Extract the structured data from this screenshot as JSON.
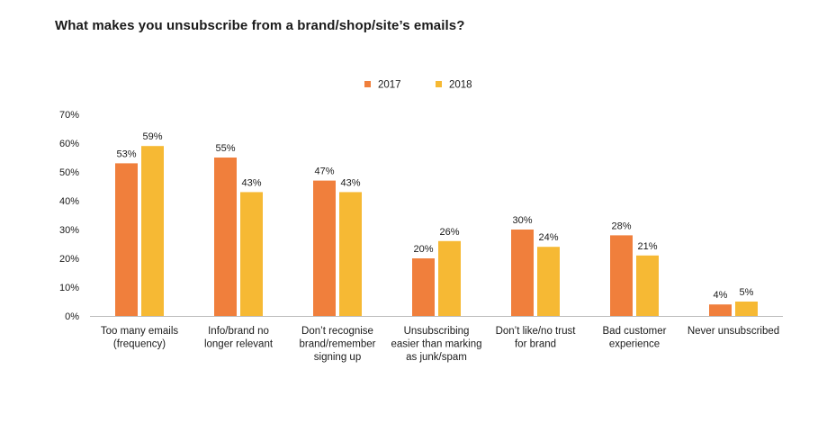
{
  "chart_data": {
    "type": "bar",
    "title": "What makes you unsubscribe from a brand/shop/site’s emails?",
    "xlabel": "",
    "ylabel": "",
    "ylim": [
      0,
      70
    ],
    "ytick_values": [
      0,
      10,
      20,
      30,
      40,
      50,
      60,
      70
    ],
    "ytick_labels": [
      "0%",
      "10%",
      "20%",
      "30%",
      "40%",
      "50%",
      "60%",
      "70%"
    ],
    "grid": false,
    "legend_position": "top-center",
    "categories": [
      [
        "Too many emails",
        "(frequency)"
      ],
      [
        "Info/brand no",
        "longer relevant"
      ],
      [
        "Don’t recognise",
        "brand/remember",
        "signing up"
      ],
      [
        "Unsubscribing",
        "easier than marking",
        "as junk/spam"
      ],
      [
        "Don’t like/no trust",
        "for brand"
      ],
      [
        "Bad customer",
        "experience"
      ],
      [
        "Never unsubscribed"
      ]
    ],
    "series": [
      {
        "name": "2017",
        "color": "#f07f3c",
        "values": [
          53,
          55,
          47,
          20,
          30,
          28,
          4
        ],
        "labels": [
          "53%",
          "55%",
          "47%",
          "20%",
          "30%",
          "28%",
          "4%"
        ]
      },
      {
        "name": "2018",
        "color": "#f6b934",
        "values": [
          59,
          43,
          43,
          26,
          24,
          21,
          5
        ],
        "labels": [
          "59%",
          "43%",
          "43%",
          "26%",
          "24%",
          "21%",
          "5%"
        ]
      }
    ]
  }
}
